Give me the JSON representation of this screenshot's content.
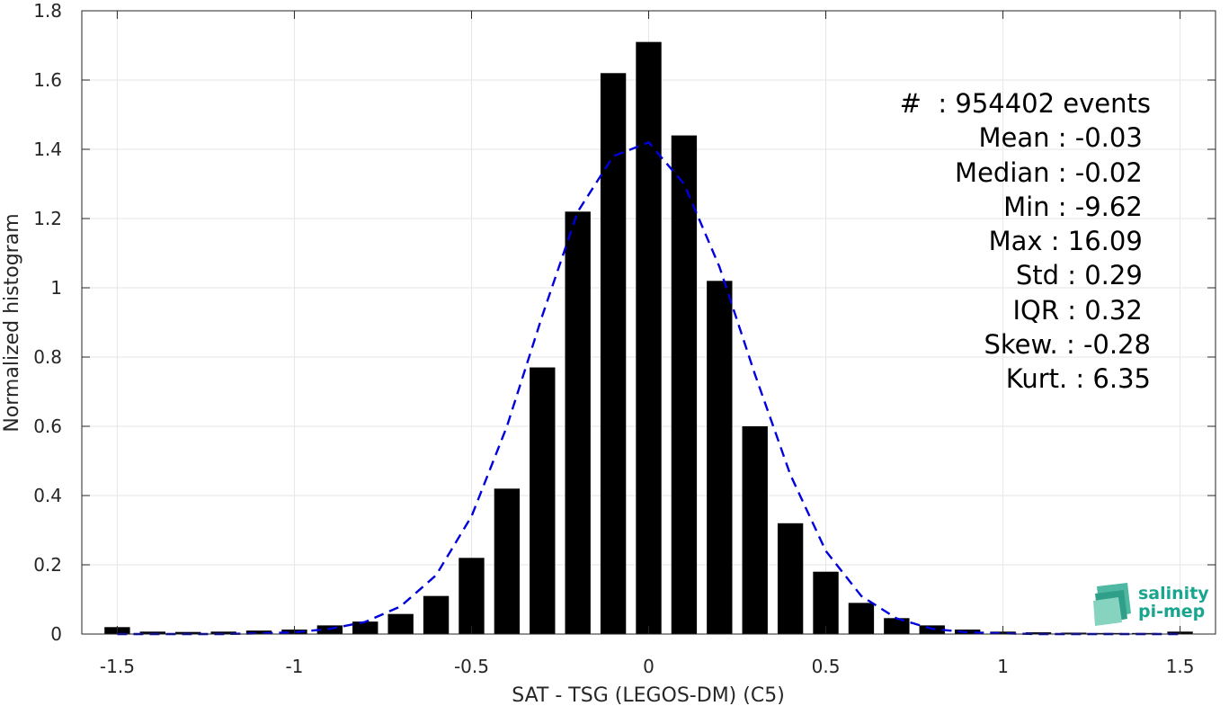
{
  "chart_data": {
    "type": "bar",
    "xlabel": "SAT - TSG (LEGOS-DM) (C5)",
    "ylabel": "Normalized histogram",
    "xlim": [
      -1.6,
      1.6
    ],
    "ylim": [
      0,
      1.8
    ],
    "xticks": [
      "-1.5",
      "-1",
      "-0.5",
      "0",
      "0.5",
      "1",
      "1.5"
    ],
    "xtick_values": [
      -1.5,
      -1,
      -0.5,
      0,
      0.5,
      1,
      1.5
    ],
    "yticks": [
      "0",
      "0.2",
      "0.4",
      "0.6",
      "0.8",
      "1",
      "1.2",
      "1.4",
      "1.6",
      "1.8"
    ],
    "ytick_values": [
      0,
      0.2,
      0.4,
      0.6,
      0.8,
      1.0,
      1.2,
      1.4,
      1.6,
      1.8
    ],
    "grid": true,
    "bar_color": "#000000",
    "bars": {
      "x": [
        -1.5,
        -1.4,
        -1.3,
        -1.2,
        -1.1,
        -1.0,
        -0.9,
        -0.8,
        -0.7,
        -0.6,
        -0.5,
        -0.4,
        -0.3,
        -0.2,
        -0.1,
        0.0,
        0.1,
        0.2,
        0.3,
        0.4,
        0.5,
        0.6,
        0.7,
        0.8,
        0.9,
        1.0,
        1.1,
        1.2,
        1.3,
        1.4,
        1.5
      ],
      "values": [
        0.02,
        0.007,
        0.006,
        0.007,
        0.01,
        0.013,
        0.025,
        0.036,
        0.058,
        0.11,
        0.22,
        0.42,
        0.77,
        1.22,
        1.62,
        1.71,
        1.44,
        1.02,
        0.6,
        0.32,
        0.18,
        0.09,
        0.046,
        0.025,
        0.013,
        0.007,
        0.005,
        0.004,
        0.003,
        0.003,
        0.007
      ]
    },
    "fit": {
      "style": "dashed",
      "color": "#0000dd",
      "x": [
        -1.5,
        -1.4,
        -1.3,
        -1.2,
        -1.1,
        -1.0,
        -0.9,
        -0.8,
        -0.7,
        -0.6,
        -0.5,
        -0.4,
        -0.3,
        -0.2,
        -0.1,
        0.0,
        0.1,
        0.2,
        0.3,
        0.4,
        0.5,
        0.6,
        0.7,
        0.8,
        0.9,
        1.0,
        1.1,
        1.2,
        1.3,
        1.4,
        1.5
      ],
      "y": [
        0.0,
        0.0,
        0.0,
        0.0,
        0.002,
        0.005,
        0.015,
        0.035,
        0.08,
        0.17,
        0.34,
        0.6,
        0.92,
        1.22,
        1.38,
        1.42,
        1.3,
        1.06,
        0.75,
        0.46,
        0.24,
        0.11,
        0.045,
        0.015,
        0.005,
        0.002,
        0.0,
        0.0,
        0.0,
        0.0,
        0.0
      ]
    }
  },
  "stats": [
    "#  : 954402 events",
    "Mean : -0.03 ",
    "Median : -0.02 ",
    "Min : -9.62 ",
    "Max : 16.09 ",
    "Std : 0.29 ",
    "IQR : 0.32 ",
    "Skew. : -0.28",
    "Kurt. : 6.35"
  ],
  "logo": {
    "line1": "salinity",
    "line2": "pi-mep",
    "color": "#1aa58f"
  }
}
